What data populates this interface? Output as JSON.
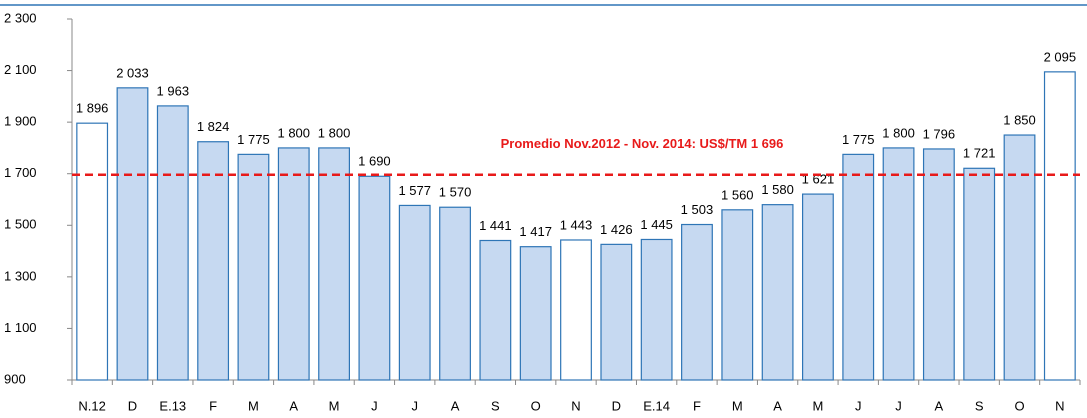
{
  "chart_data": {
    "type": "bar",
    "categories": [
      "N.12",
      "D",
      "E.13",
      "F",
      "M",
      "A",
      "M",
      "J",
      "J",
      "A",
      "S",
      "O",
      "N",
      "D",
      "E.14",
      "F",
      "M",
      "A",
      "M",
      "J",
      "J",
      "A",
      "S",
      "O",
      "N"
    ],
    "values": [
      1896,
      2033,
      1963,
      1824,
      1775,
      1800,
      1800,
      1690,
      1577,
      1570,
      1441,
      1417,
      1443,
      1426,
      1445,
      1503,
      1560,
      1580,
      1621,
      1775,
      1800,
      1796,
      1721,
      1850,
      2095
    ],
    "value_labels": [
      "1 896",
      "2 033",
      "1 963",
      "1 824",
      "1 775",
      "1 800",
      "1 800",
      "1 690",
      "1 577",
      "1 570",
      "1 441",
      "1 417",
      "1 443",
      "1 426",
      "1 445",
      "1 503",
      "1 560",
      "1 580",
      "1 621",
      "1 775",
      "1 800",
      "1 796",
      "1 721",
      "1 850",
      "2 095"
    ],
    "colors": [
      "#ffffff",
      "#c6d9f1",
      "#c6d9f1",
      "#c6d9f1",
      "#c6d9f1",
      "#c6d9f1",
      "#c6d9f1",
      "#c6d9f1",
      "#c6d9f1",
      "#c6d9f1",
      "#c6d9f1",
      "#c6d9f1",
      "#ffffff",
      "#c6d9f1",
      "#c6d9f1",
      "#c6d9f1",
      "#c6d9f1",
      "#c6d9f1",
      "#c6d9f1",
      "#c6d9f1",
      "#c6d9f1",
      "#c6d9f1",
      "#c6d9f1",
      "#c6d9f1",
      "#ffffff"
    ],
    "edge_color": "#2e75b6",
    "ylim": [
      900,
      2300
    ],
    "yticks": [
      900,
      {
        "value": 1100,
        "label": "1 100"
      },
      {
        "value": 1300,
        "label": "1 300"
      },
      {
        "value": 1500,
        "label": "1 500"
      },
      {
        "value": 1700,
        "label": "1 700"
      },
      {
        "value": 1900,
        "label": "1 900"
      },
      {
        "value": 2100,
        "label": "2 100"
      },
      {
        "value": 2300,
        "label": "2 300"
      }
    ],
    "reference_line": {
      "value": 1696,
      "label": "Promedio Nov.2012 - Nov. 2014: US$/TM 1 696",
      "color": "#e81a1a"
    }
  }
}
